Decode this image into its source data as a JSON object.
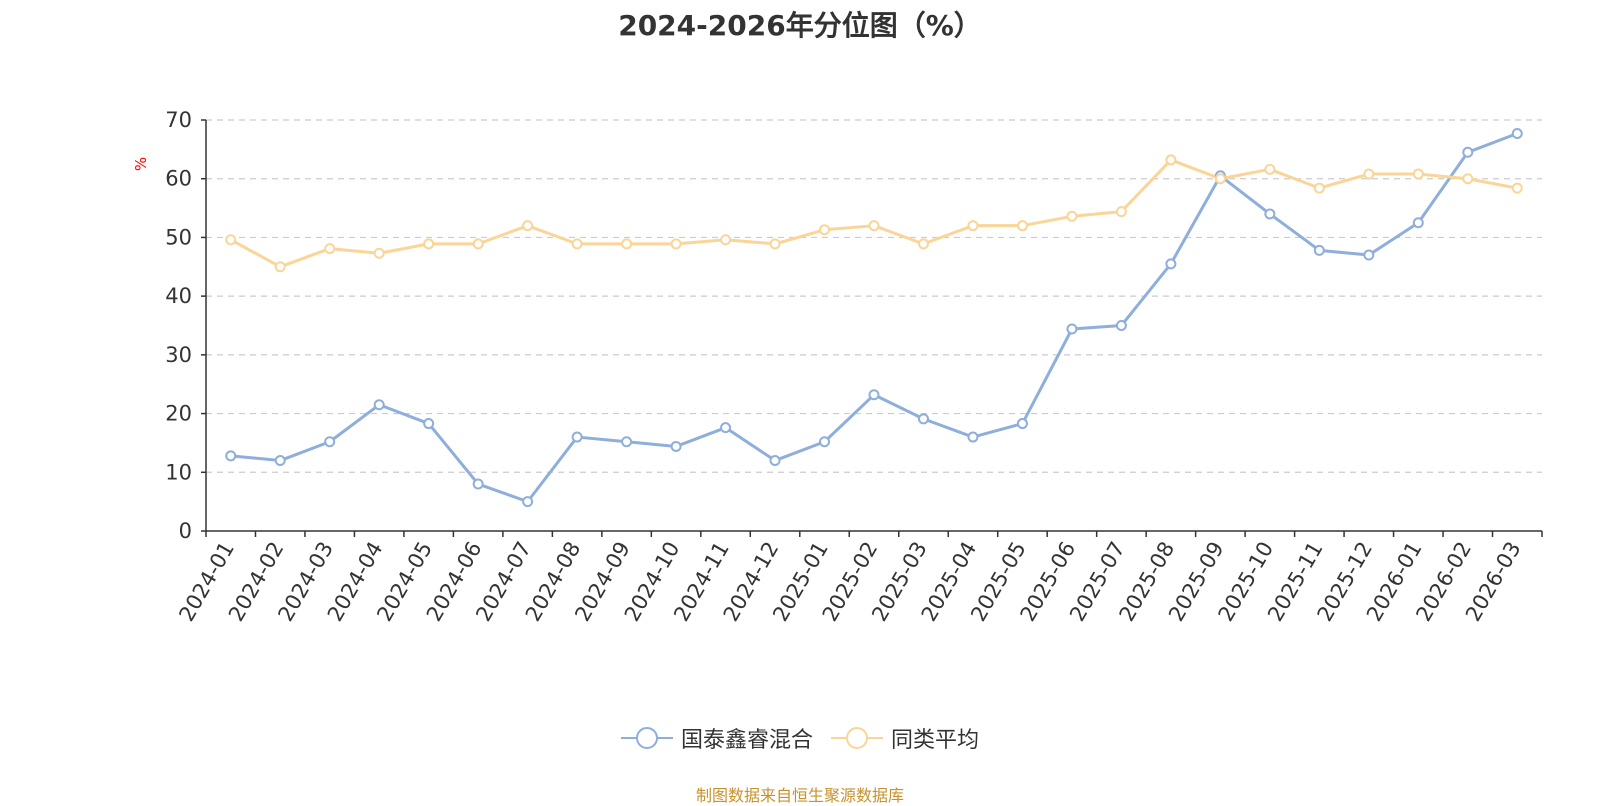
{
  "chart_data": {
    "type": "line",
    "title": "2024-2026年分位图（%）",
    "ylabel": "%",
    "xlabel": "",
    "ylim": [
      0,
      70
    ],
    "yticks": [
      0,
      10,
      20,
      30,
      40,
      50,
      60,
      70
    ],
    "grid": true,
    "legend_position": "bottom",
    "categories": [
      "2024-01",
      "2024-02",
      "2024-03",
      "2024-04",
      "2024-05",
      "2024-06",
      "2024-07",
      "2024-08",
      "2024-09",
      "2024-10",
      "2024-11",
      "2024-12",
      "2025-01",
      "2025-02",
      "2025-03",
      "2025-04",
      "2025-05",
      "2025-06",
      "2025-07",
      "2025-08",
      "2025-09",
      "2025-10",
      "2025-11",
      "2025-12",
      "2026-01",
      "2026-02",
      "2026-03"
    ],
    "series": [
      {
        "name": "国泰鑫睿混合",
        "color": "#8eaedb",
        "values": [
          12.8,
          12.0,
          15.2,
          21.5,
          18.3,
          8.0,
          5.0,
          16.0,
          15.2,
          14.4,
          17.6,
          12.0,
          15.2,
          23.2,
          19.1,
          16.0,
          18.3,
          34.4,
          35.0,
          45.5,
          60.5,
          54.0,
          47.8,
          47.0,
          52.5,
          64.5,
          67.7
        ]
      },
      {
        "name": "同类平均",
        "color": "#fad597",
        "values": [
          49.6,
          45.0,
          48.1,
          47.3,
          48.9,
          48.9,
          52.0,
          48.9,
          48.9,
          48.9,
          49.6,
          48.9,
          51.3,
          52.0,
          48.9,
          52.0,
          52.0,
          53.6,
          54.4,
          63.2,
          60.0,
          61.6,
          58.4,
          60.8,
          60.8,
          60.0,
          58.4
        ]
      }
    ]
  },
  "footer": {
    "source": "制图数据来自恒生聚源数据库"
  }
}
